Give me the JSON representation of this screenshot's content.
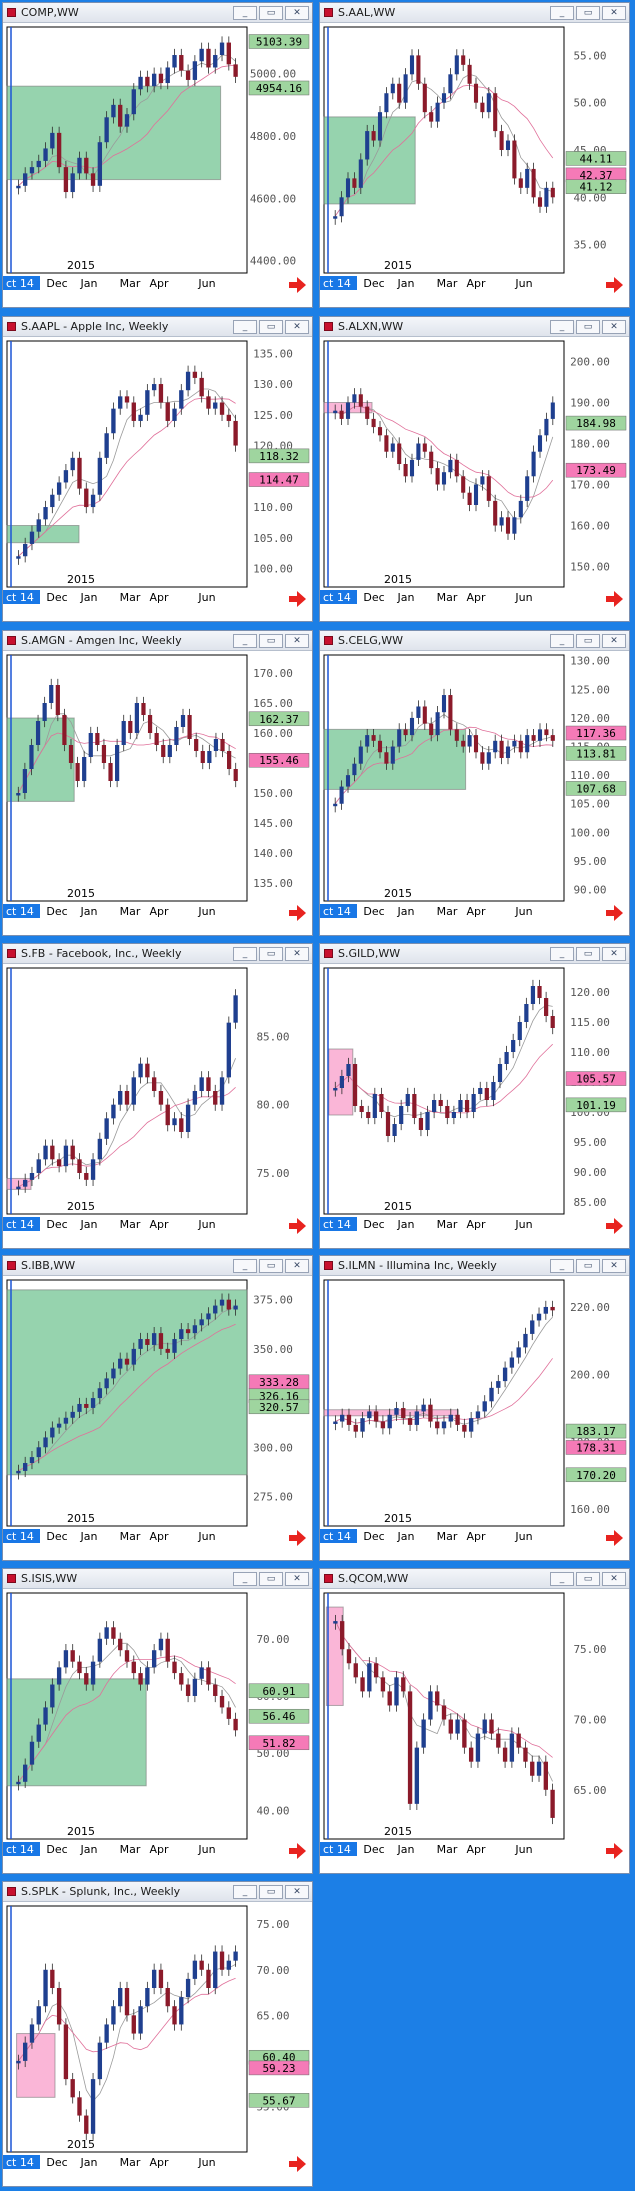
{
  "windows": [
    {
      "id": "comp",
      "title": "COMP,WW",
      "ticks": [
        "5000.00",
        "4800.00",
        "4600.00",
        "4400.00"
      ],
      "tick_values": [
        5000,
        4800,
        4600,
        4400
      ],
      "ylim": [
        4360,
        5150
      ],
      "labels": [
        {
          "text": "5103.39",
          "value": 5103.39,
          "color": "#9fd59f"
        },
        {
          "text": "4954.16",
          "value": 4954.16,
          "color": "#9fd59f"
        }
      ],
      "box": {
        "x0": 0,
        "x1": 0.89,
        "y0": 4960,
        "y1": 4660,
        "color": "#3fae6b"
      },
      "year": "2015",
      "months": [
        "Dec",
        "Jan",
        "Mar",
        "Apr",
        "Jun"
      ],
      "tag": "ct 14",
      "closes": [
        4640,
        4680,
        4700,
        4720,
        4760,
        4810,
        4700,
        4620,
        4680,
        4730,
        4680,
        4640,
        4780,
        4860,
        4900,
        4830,
        4870,
        4950,
        4990,
        4960,
        5000,
        4970,
        5020,
        5060,
        5010,
        4980,
        5040,
        5080,
        5020,
        5060,
        5100,
        5030,
        4990
      ]
    },
    {
      "id": "aal",
      "title": "S.AAL,WW",
      "ticks": [
        "55.00",
        "50.00",
        "45.00",
        "40.00",
        "35.00"
      ],
      "tick_values": [
        55,
        50,
        45,
        40,
        35
      ],
      "ylim": [
        32,
        58
      ],
      "labels": [
        {
          "text": "44.11",
          "value": 44.11,
          "color": "#9fd59f"
        },
        {
          "text": "42.37",
          "value": 42.37,
          "color": "#f57ab7"
        },
        {
          "text": "41.12",
          "value": 41.12,
          "color": "#9fd59f"
        }
      ],
      "box": {
        "x0": 0,
        "x1": 0.38,
        "y0": 48.5,
        "y1": 39.3,
        "color": "#3fae6b"
      },
      "year": "2015",
      "months": [
        "Dec",
        "Jan",
        "Mar",
        "Apr",
        "Jun"
      ],
      "tag": "ct 14",
      "closes": [
        38,
        40,
        42,
        41,
        44,
        47,
        46,
        49,
        51,
        52,
        50,
        53,
        55,
        52,
        49,
        48,
        50,
        51,
        53,
        55,
        54,
        52,
        50,
        49,
        51,
        47,
        45,
        46,
        42,
        41,
        43,
        40,
        39,
        41,
        40
      ]
    },
    {
      "id": "aapl",
      "title": "S.AAPL - Apple Inc, Weekly",
      "ticks": [
        "135.00",
        "130.00",
        "125.00",
        "120.00",
        "115.00",
        "110.00",
        "105.00",
        "100.00"
      ],
      "tick_values": [
        135,
        130,
        125,
        120,
        115,
        110,
        105,
        100
      ],
      "ylim": [
        97,
        137
      ],
      "labels": [
        {
          "text": "118.32",
          "value": 118.32,
          "color": "#9fd59f"
        },
        {
          "text": "114.47",
          "value": 114.47,
          "color": "#f57ab7"
        }
      ],
      "box": {
        "x0": 0,
        "x1": 0.3,
        "y0": 107,
        "y1": 104.2,
        "color": "#3fae6b"
      },
      "year": "2015",
      "months": [
        "Dec",
        "Jan",
        "Mar",
        "Apr",
        "Jun"
      ],
      "tag": "ct 14",
      "closes": [
        102,
        104,
        106,
        108,
        110,
        112,
        114,
        116,
        118,
        113,
        110,
        112,
        118,
        122,
        126,
        128,
        127,
        124,
        125,
        129,
        130,
        127,
        124,
        126,
        129,
        132,
        131,
        128,
        126,
        127,
        125,
        124,
        120
      ]
    },
    {
      "id": "alxn",
      "title": "S.ALXN,WW",
      "ticks": [
        "200.00",
        "190.00",
        "180.00",
        "170.00",
        "160.00",
        "150.00"
      ],
      "tick_values": [
        200,
        190,
        180,
        170,
        160,
        150
      ],
      "ylim": [
        145,
        205
      ],
      "labels": [
        {
          "text": "184.98",
          "value": 184.98,
          "color": "#9fd59f"
        },
        {
          "text": "173.49",
          "value": 173.49,
          "color": "#f57ab7"
        }
      ],
      "box": {
        "x0": 0,
        "x1": 0.2,
        "y0": 190,
        "y1": 187.5,
        "color": "#f57ab7"
      },
      "year": "2015",
      "months": [
        "Dec",
        "Jan",
        "Mar",
        "Apr",
        "Jun"
      ],
      "tag": "ct 14",
      "closes": [
        188,
        186,
        190,
        192,
        189,
        186,
        184,
        182,
        178,
        180,
        175,
        172,
        176,
        180,
        178,
        174,
        170,
        173,
        176,
        172,
        168,
        165,
        170,
        172,
        166,
        160,
        162,
        158,
        162,
        166,
        172,
        178,
        182,
        186,
        190
      ]
    },
    {
      "id": "amgn",
      "title": "S.AMGN - Amgen Inc, Weekly",
      "ticks": [
        "170.00",
        "165.00",
        "160.00",
        "155.00",
        "150.00",
        "145.00",
        "140.00",
        "135.00"
      ],
      "tick_values": [
        170,
        165,
        160,
        155,
        150,
        145,
        140,
        135
      ],
      "ylim": [
        132,
        173
      ],
      "labels": [
        {
          "text": "162.37",
          "value": 162.37,
          "color": "#9fd59f"
        },
        {
          "text": "155.46",
          "value": 155.46,
          "color": "#f57ab7"
        }
      ],
      "box": {
        "x0": 0,
        "x1": 0.28,
        "y0": 162.5,
        "y1": 148.6,
        "color": "#3fae6b"
      },
      "year": "2015",
      "months": [
        "Dec",
        "Jan",
        "Mar",
        "Apr",
        "Jun"
      ],
      "tag": "ct 14",
      "closes": [
        150,
        154,
        158,
        162,
        165,
        168,
        163,
        158,
        155,
        152,
        156,
        160,
        158,
        155,
        152,
        158,
        162,
        160,
        165,
        163,
        160,
        158,
        156,
        158,
        161,
        163,
        159,
        157,
        155,
        157,
        159,
        157,
        154,
        152
      ]
    },
    {
      "id": "celg",
      "title": "S.CELG,WW",
      "ticks": [
        "130.00",
        "125.00",
        "120.00",
        "115.00",
        "110.00",
        "105.00",
        "100.00",
        "95.00",
        "90.00"
      ],
      "tick_values": [
        130,
        125,
        120,
        115,
        110,
        105,
        100,
        95,
        90
      ],
      "ylim": [
        88,
        131
      ],
      "labels": [
        {
          "text": "117.36",
          "value": 117.36,
          "color": "#f57ab7"
        },
        {
          "text": "113.81",
          "value": 113.81,
          "color": "#9fd59f"
        },
        {
          "text": "107.68",
          "value": 107.68,
          "color": "#9fd59f"
        }
      ],
      "box": {
        "x0": 0,
        "x1": 0.59,
        "y0": 118,
        "y1": 107.5,
        "color": "#3fae6b"
      },
      "year": "2015",
      "months": [
        "Dec",
        "Jan",
        "Mar",
        "Apr",
        "Jun"
      ],
      "tag": "ct 14",
      "closes": [
        105,
        108,
        110,
        112,
        115,
        117,
        116,
        114,
        112,
        115,
        118,
        117,
        120,
        122,
        119,
        117,
        121,
        124,
        118,
        116,
        115,
        117,
        114,
        112,
        114,
        116,
        113,
        115,
        116,
        114,
        117,
        116,
        118,
        117,
        116
      ]
    },
    {
      "id": "fb",
      "title": "S.FB - Facebook, Inc., Weekly",
      "ticks": [
        "85.00",
        "80.00",
        "75.00"
      ],
      "tick_values": [
        85,
        80,
        75
      ],
      "ylim": [
        72,
        90
      ],
      "labels": [],
      "box": {
        "x0": 0,
        "x1": 0.1,
        "y0": 74.6,
        "y1": 73.8,
        "color": "#f57ab7"
      },
      "year": "2015",
      "months": [
        "Dec",
        "Jan",
        "Mar",
        "Apr",
        "Jun"
      ],
      "tag": "ct 14",
      "closes": [
        74,
        74.5,
        75,
        76,
        77,
        76,
        75.5,
        77,
        76,
        75,
        74.5,
        76,
        77.5,
        79,
        80,
        81,
        80,
        82,
        83,
        82,
        81,
        80,
        78.5,
        79,
        78,
        80,
        81,
        82,
        81,
        80,
        82,
        86,
        88
      ]
    },
    {
      "id": "gild",
      "title": "S.GILD,WW",
      "ticks": [
        "120.00",
        "115.00",
        "110.00",
        "105.00",
        "100.00",
        "95.00",
        "90.00",
        "85.00"
      ],
      "tick_values": [
        120,
        115,
        110,
        105,
        100,
        95,
        90,
        85
      ],
      "ylim": [
        83,
        124
      ],
      "labels": [
        {
          "text": "105.57",
          "value": 105.57,
          "color": "#f57ab7"
        },
        {
          "text": "101.19",
          "value": 101.19,
          "color": "#9fd59f"
        }
      ],
      "box": {
        "x0": 0.02,
        "x1": 0.12,
        "y0": 110.5,
        "y1": 99.5,
        "color": "#f57ab7"
      },
      "year": "2015",
      "months": [
        "Dec",
        "Jan",
        "Mar",
        "Apr",
        "Jun"
      ],
      "tag": "ct 14",
      "closes": [
        104,
        106,
        108,
        101,
        100,
        99,
        103,
        100,
        96,
        98,
        101,
        103,
        99,
        97,
        100,
        102,
        101,
        99,
        100,
        102,
        100,
        103,
        104,
        102,
        105,
        108,
        110,
        112,
        115,
        118,
        121,
        119,
        116,
        114
      ]
    },
    {
      "id": "ibb",
      "title": "S.IBB,WW",
      "ticks": [
        "375.00",
        "350.00",
        "325.00",
        "300.00",
        "275.00"
      ],
      "tick_values": [
        375,
        350,
        325,
        300,
        275
      ],
      "ylim": [
        260,
        385
      ],
      "labels": [
        {
          "text": "333.28",
          "value": 333.28,
          "color": "#f57ab7"
        },
        {
          "text": "326.16",
          "value": 326.16,
          "color": "#9fd59f"
        },
        {
          "text": "320.57",
          "value": 320.57,
          "color": "#9fd59f"
        }
      ],
      "box": {
        "x0": 0,
        "x1": 1,
        "y0": 380,
        "y1": 286,
        "color": "#3fae6b"
      },
      "year": "2015",
      "months": [
        "Dec",
        "Jan",
        "Mar",
        "Apr",
        "Jun"
      ],
      "tag": "ct 14",
      "closes": [
        288,
        292,
        295,
        300,
        305,
        310,
        312,
        315,
        318,
        322,
        320,
        325,
        330,
        335,
        340,
        345,
        342,
        350,
        355,
        352,
        358,
        350,
        348,
        355,
        360,
        358,
        362,
        365,
        368,
        372,
        375,
        370,
        372
      ]
    },
    {
      "id": "ilmn",
      "title": "S.ILMN - Illumina Inc, Weekly",
      "ticks": [
        "220.00",
        "200.00",
        "180.00",
        "160.00"
      ],
      "tick_values": [
        220,
        200,
        180,
        160
      ],
      "ylim": [
        155,
        228
      ],
      "labels": [
        {
          "text": "183.17",
          "value": 183.17,
          "color": "#9fd59f"
        },
        {
          "text": "178.31",
          "value": 178.31,
          "color": "#f57ab7"
        },
        {
          "text": "170.20",
          "value": 170.2,
          "color": "#9fd59f"
        }
      ],
      "box": {
        "x0": 0,
        "x1": 0.56,
        "y0": 189.5,
        "y1": 187.7,
        "color": "#f57ab7"
      },
      "year": "2015",
      "months": [
        "Dec",
        "Jan",
        "Mar",
        "Apr",
        "Jun"
      ],
      "tag": "ct 14",
      "closes": [
        186,
        188,
        185,
        183,
        187,
        189,
        186,
        184,
        188,
        190,
        187,
        185,
        189,
        191,
        186,
        184,
        186,
        188,
        185,
        183,
        187,
        189,
        192,
        196,
        198,
        202,
        205,
        208,
        212,
        216,
        218,
        220,
        219
      ]
    },
    {
      "id": "isis",
      "title": "S.ISIS,WW",
      "ticks": [
        "70.00",
        "60.00",
        "50.00",
        "40.00"
      ],
      "tick_values": [
        70,
        60,
        50,
        40
      ],
      "ylim": [
        35,
        78
      ],
      "labels": [
        {
          "text": "60.91",
          "value": 60.91,
          "color": "#9fd59f"
        },
        {
          "text": "56.46",
          "value": 56.46,
          "color": "#9fd59f"
        },
        {
          "text": "51.82",
          "value": 51.82,
          "color": "#f57ab7"
        }
      ],
      "box": {
        "x0": 0,
        "x1": 0.58,
        "y0": 63,
        "y1": 44.3,
        "color": "#3fae6b"
      },
      "year": "2015",
      "months": [
        "Dec",
        "Jan",
        "Mar",
        "Apr",
        "Jun"
      ],
      "tag": "ct 14",
      "closes": [
        45,
        48,
        52,
        55,
        58,
        62,
        65,
        68,
        66,
        64,
        62,
        66,
        70,
        72,
        70,
        68,
        66,
        64,
        62,
        65,
        68,
        70,
        66,
        64,
        62,
        60,
        63,
        65,
        62,
        60,
        58,
        56,
        54
      ]
    },
    {
      "id": "qcom",
      "title": "S.QCOM,WW",
      "ticks": [
        "75.00",
        "70.00",
        "65.00"
      ],
      "tick_values": [
        75,
        70,
        65
      ],
      "ylim": [
        61.5,
        79
      ],
      "labels": [],
      "box": {
        "x0": 0.01,
        "x1": 0.08,
        "y0": 78,
        "y1": 71,
        "color": "#f57ab7"
      },
      "year": "2015",
      "months": [
        "Dec",
        "Jan",
        "Mar",
        "Apr",
        "Jun"
      ],
      "tag": "ct 14",
      "closes": [
        77,
        75,
        74,
        73,
        72,
        74,
        73,
        72,
        71,
        73,
        72,
        64,
        68,
        70,
        72,
        71,
        70,
        69,
        70,
        68,
        67,
        69,
        70,
        69,
        68,
        67,
        69,
        68,
        67,
        66,
        67,
        65,
        63
      ]
    },
    {
      "id": "splk",
      "title": "S.SPLK - Splunk, Inc., Weekly",
      "ticks": [
        "75.00",
        "70.00",
        "65.00",
        "60.00",
        "55.00"
      ],
      "tick_values": [
        75,
        70,
        65,
        60,
        55
      ],
      "ylim": [
        50,
        77
      ],
      "labels": [
        {
          "text": "60.40",
          "value": 60.4,
          "color": "#9fd59f"
        },
        {
          "text": "59.23",
          "value": 59.23,
          "color": "#f57ab7"
        },
        {
          "text": "55.67",
          "value": 55.67,
          "color": "#9fd59f"
        }
      ],
      "box": {
        "x0": 0.04,
        "x1": 0.2,
        "y0": 63,
        "y1": 56,
        "color": "#f57ab7"
      },
      "year": "2015",
      "months": [
        "Dec",
        "Jan",
        "Mar",
        "Apr",
        "Jun"
      ],
      "tag": "ct 14",
      "closes": [
        60,
        62,
        64,
        66,
        70,
        68,
        64,
        58,
        56,
        54,
        52,
        58,
        62,
        64,
        66,
        68,
        65,
        63,
        66,
        68,
        70,
        68,
        66,
        64,
        67,
        69,
        71,
        70,
        68,
        72,
        70,
        71,
        72
      ]
    }
  ],
  "chart_data": [
    {
      "type": "line",
      "title": "COMP,WW",
      "ylim": [
        4360,
        5150
      ]
    },
    {
      "type": "line",
      "title": "S.AAL,WW",
      "ylim": [
        32,
        58
      ]
    },
    {
      "type": "line",
      "title": "S.AAPL - Apple Inc, Weekly",
      "ylim": [
        97,
        137
      ]
    },
    {
      "type": "line",
      "title": "S.ALXN,WW",
      "ylim": [
        145,
        205
      ]
    },
    {
      "type": "line",
      "title": "S.AMGN - Amgen Inc, Weekly",
      "ylim": [
        132,
        173
      ]
    },
    {
      "type": "line",
      "title": "S.CELG,WW",
      "ylim": [
        88,
        131
      ]
    },
    {
      "type": "line",
      "title": "S.FB - Facebook, Inc., Weekly",
      "ylim": [
        72,
        90
      ]
    },
    {
      "type": "line",
      "title": "S.GILD,WW",
      "ylim": [
        83,
        124
      ]
    },
    {
      "type": "line",
      "title": "S.IBB,WW",
      "ylim": [
        260,
        385
      ]
    },
    {
      "type": "line",
      "title": "S.ILMN - Illumina Inc, Weekly",
      "ylim": [
        155,
        228
      ]
    },
    {
      "type": "line",
      "title": "S.ISIS,WW",
      "ylim": [
        35,
        78
      ]
    },
    {
      "type": "line",
      "title": "S.QCOM,WW",
      "ylim": [
        61.5,
        79
      ]
    },
    {
      "type": "line",
      "title": "S.SPLK - Splunk, Inc., Weekly",
      "ylim": [
        50,
        77
      ]
    }
  ],
  "buttons": {
    "minimize": "_",
    "restore": "▭",
    "close": "✕"
  }
}
